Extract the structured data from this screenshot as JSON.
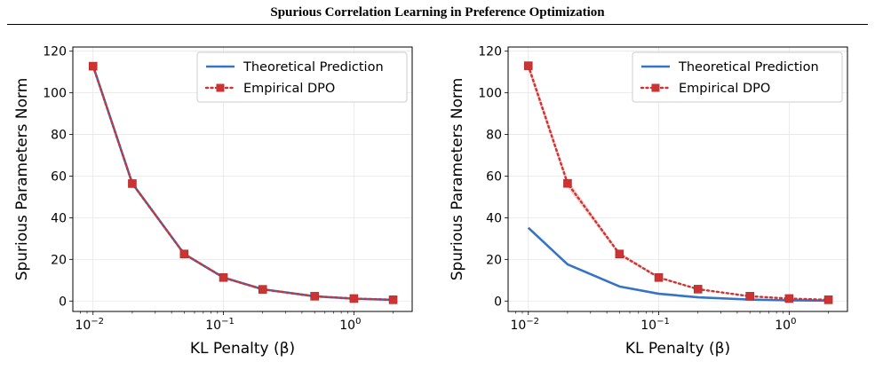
{
  "page": {
    "header": "Spurious Correlation Learning in Preference Optimization"
  },
  "colors": {
    "theory": "#3473c5",
    "empirical": "#cc3333",
    "band": "#f2b8b8",
    "grid": "#e6e6e6"
  },
  "chart_data": [
    {
      "type": "line",
      "xscale": "log",
      "xlim": [
        0.007,
        2.8
      ],
      "ylim": [
        -5,
        122
      ],
      "yticks": [
        0,
        20,
        40,
        60,
        80,
        100,
        120
      ],
      "xticks": [
        0.01,
        0.1,
        1
      ],
      "xtick_labels": [
        {
          "base": "10",
          "exp": "−2"
        },
        {
          "base": "10",
          "exp": "−1"
        },
        {
          "base": "10",
          "exp": "0"
        }
      ],
      "xlabel": "KL Penalty (β)",
      "ylabel": "Spurious Parameters Norm",
      "grid": true,
      "legend": "top-right",
      "series": [
        {
          "name": "Theoretical Prediction",
          "style": "solid",
          "x": [
            0.01,
            0.02,
            0.05,
            0.1,
            0.2,
            0.5,
            1,
            2
          ],
          "y": [
            113,
            56.5,
            22.6,
            11.3,
            5.65,
            2.26,
            1.13,
            0.57
          ]
        },
        {
          "name": "Empirical DPO",
          "style": "dotted-square",
          "x": [
            0.01,
            0.02,
            0.05,
            0.1,
            0.2,
            0.5,
            1,
            2
          ],
          "y": [
            112.8,
            56.4,
            22.6,
            11.3,
            5.6,
            2.3,
            1.2,
            0.6
          ]
        }
      ]
    },
    {
      "type": "line",
      "xscale": "log",
      "xlim": [
        0.007,
        2.8
      ],
      "ylim": [
        -5,
        122
      ],
      "yticks": [
        0,
        20,
        40,
        60,
        80,
        100,
        120
      ],
      "xticks": [
        0.01,
        0.1,
        1
      ],
      "xtick_labels": [
        {
          "base": "10",
          "exp": "−2"
        },
        {
          "base": "10",
          "exp": "−1"
        },
        {
          "base": "10",
          "exp": "0"
        }
      ],
      "xlabel": "KL Penalty (β)",
      "ylabel": "Spurious Parameters Norm",
      "grid": true,
      "legend": "top-right",
      "series": [
        {
          "name": "Theoretical Prediction",
          "style": "solid",
          "x": [
            0.01,
            0.02,
            0.05,
            0.1,
            0.2,
            0.5,
            1,
            2
          ],
          "y": [
            35.2,
            17.6,
            7.0,
            3.5,
            1.8,
            0.7,
            0.35,
            0.18
          ]
        },
        {
          "name": "Empirical DPO",
          "style": "dotted-square",
          "x": [
            0.01,
            0.02,
            0.05,
            0.1,
            0.2,
            0.5,
            1,
            2
          ],
          "y": [
            113,
            56.5,
            22.6,
            11.3,
            5.7,
            2.3,
            1.2,
            0.6
          ],
          "band": [
            2.5,
            2.0,
            1.0,
            0.6,
            0.3,
            0.2,
            0.1,
            0.1
          ]
        }
      ]
    }
  ]
}
